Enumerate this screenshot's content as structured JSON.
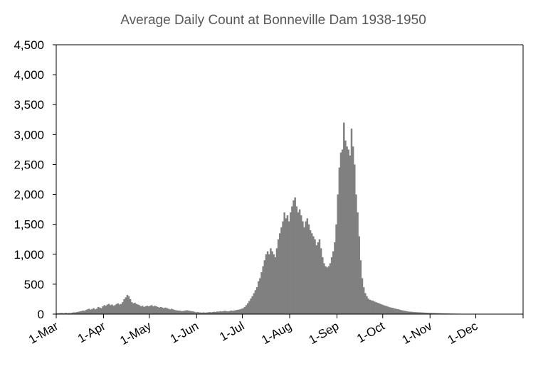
{
  "chart_data": {
    "type": "bar",
    "title": "Average Daily Count at Bonneville Dam 1938-1950",
    "xlabel": "",
    "ylabel": "",
    "ylim": [
      0,
      4500
    ],
    "yticks": [
      0,
      500,
      1000,
      1500,
      2000,
      2500,
      3000,
      3500,
      4000,
      4500
    ],
    "ytick_labels": [
      "0",
      "500",
      "1,000",
      "1,500",
      "2,000",
      "2,500",
      "3,000",
      "3,500",
      "4,000",
      "4,500"
    ],
    "xlim": [
      "1-Mar",
      "31-Dec"
    ],
    "xtick_labels": [
      "1-Mar",
      "1-Apr",
      "1-May",
      "1-Jun",
      "1-Jul",
      "1-Aug",
      "1-Sep",
      "1-Oct",
      "1-Nov",
      "1-Dec"
    ],
    "grid": false,
    "legend": "none",
    "bar_color": "#808080",
    "series": [
      {
        "values": [
          15,
          15,
          18,
          20,
          15,
          18,
          22,
          15,
          20,
          18,
          25,
          30,
          28,
          35,
          40,
          45,
          50,
          60,
          55,
          70,
          80,
          90,
          75,
          85,
          100,
          80,
          90,
          120,
          110,
          100,
          130,
          150,
          140,
          160,
          170,
          150,
          160,
          140,
          150,
          170,
          180,
          160,
          170,
          200,
          250,
          280,
          320,
          300,
          250,
          200,
          180,
          190,
          170,
          160,
          150,
          130,
          140,
          120,
          130,
          140,
          130,
          140,
          150,
          130,
          140,
          130,
          120,
          110,
          120,
          110,
          100,
          110,
          100,
          90,
          80,
          90,
          80,
          70,
          65,
          60,
          60,
          55,
          50,
          55,
          60,
          65,
          60,
          55,
          50,
          45,
          40,
          30,
          35,
          30,
          28,
          25,
          30,
          25,
          28,
          30,
          35,
          30,
          35,
          40,
          35,
          45,
          40,
          50,
          45,
          50,
          55,
          50,
          45,
          50,
          60,
          55,
          60,
          65,
          70,
          75,
          80,
          90,
          100,
          120,
          150,
          180,
          220,
          260,
          300,
          350,
          400,
          450,
          550,
          600,
          700,
          800,
          900,
          1000,
          1050,
          1000,
          1100,
          1050,
          1000,
          950,
          1100,
          1250,
          1350,
          1450,
          1550,
          1700,
          1600,
          1650,
          1550,
          1700,
          1800,
          1900,
          1950,
          1800,
          1700,
          1750,
          1650,
          1550,
          1450,
          1550,
          1600,
          1500,
          1400,
          1350,
          1300,
          1250,
          1150,
          1200,
          1250,
          1100,
          950,
          850,
          800,
          780,
          800,
          850,
          950,
          1050,
          1200,
          1500,
          2000,
          2450,
          2700,
          2750,
          3200,
          2900,
          2800,
          2750,
          2650,
          3100,
          2800,
          2500,
          2000,
          1700,
          1300,
          900,
          600,
          450,
          350,
          300,
          260,
          240,
          230,
          225,
          210,
          200,
          190,
          180,
          170,
          160,
          150,
          140,
          135,
          125,
          115,
          110,
          105,
          95,
          90,
          85,
          80,
          70,
          65,
          60,
          55,
          50,
          45,
          42,
          40,
          38,
          35,
          33,
          32,
          30,
          30,
          28,
          27,
          25,
          24,
          23,
          22,
          21,
          20,
          19,
          18,
          17,
          16,
          15,
          14,
          13,
          12,
          12,
          11,
          10,
          10,
          9,
          9,
          8,
          8,
          7,
          7,
          6,
          6,
          5,
          5,
          5,
          4,
          4,
          3,
          3,
          3
        ]
      }
    ]
  }
}
